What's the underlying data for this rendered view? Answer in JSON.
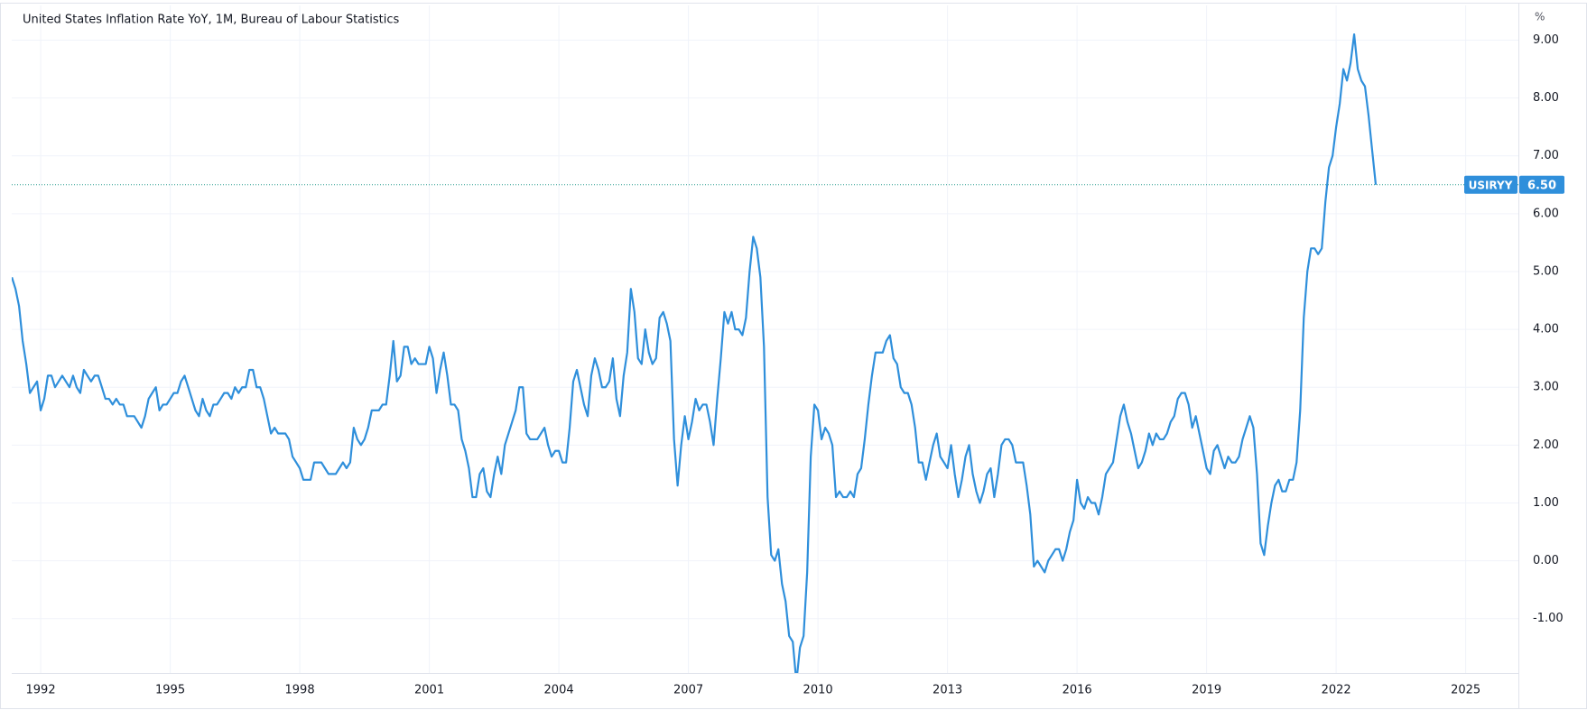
{
  "chart_data": {
    "type": "line",
    "title": "United States Inflation Rate YoY, 1M, Bureau of Labour Statistics",
    "y_unit": "%",
    "xlim": [
      1991.33,
      2026.22
    ],
    "xticks": [
      1992,
      1995,
      1998,
      2001,
      2004,
      2007,
      2010,
      2013,
      2016,
      2019,
      2022,
      2025
    ],
    "ylim": [
      -1.94,
      9.6
    ],
    "yticks": [
      {
        "value": -1,
        "label": "-1.00"
      },
      {
        "value": 0,
        "label": "0.00"
      },
      {
        "value": 1,
        "label": "1.00"
      },
      {
        "value": 2,
        "label": "2.00"
      },
      {
        "value": 3,
        "label": "3.00"
      },
      {
        "value": 4,
        "label": "4.00"
      },
      {
        "value": 5,
        "label": "5.00"
      },
      {
        "value": 6,
        "label": "6.00"
      },
      {
        "value": 7,
        "label": "7.00"
      },
      {
        "value": 8,
        "label": "8.00"
      },
      {
        "value": 9,
        "label": "9.00"
      }
    ],
    "grid": true,
    "price_line": {
      "value": 6.5,
      "label": "6.50"
    },
    "series": [
      {
        "name": "USIRYY",
        "color": "#2f8fdb",
        "x": [
          1991.333,
          1991.417,
          1991.5,
          1991.583,
          1991.667,
          1991.75,
          1991.833,
          1991.917,
          1992,
          1992.083,
          1992.167,
          1992.25,
          1992.333,
          1992.417,
          1992.5,
          1992.583,
          1992.667,
          1992.75,
          1992.833,
          1992.917,
          1993,
          1993.083,
          1993.167,
          1993.25,
          1993.333,
          1993.417,
          1993.5,
          1993.583,
          1993.667,
          1993.75,
          1993.833,
          1993.917,
          1994,
          1994.083,
          1994.167,
          1994.25,
          1994.333,
          1994.417,
          1994.5,
          1994.583,
          1994.667,
          1994.75,
          1994.833,
          1994.917,
          1995,
          1995.083,
          1995.167,
          1995.25,
          1995.333,
          1995.417,
          1995.5,
          1995.583,
          1995.667,
          1995.75,
          1995.833,
          1995.917,
          1996,
          1996.083,
          1996.167,
          1996.25,
          1996.333,
          1996.417,
          1996.5,
          1996.583,
          1996.667,
          1996.75,
          1996.833,
          1996.917,
          1997,
          1997.083,
          1997.167,
          1997.25,
          1997.333,
          1997.417,
          1997.5,
          1997.583,
          1997.667,
          1997.75,
          1997.833,
          1997.917,
          1998,
          1998.083,
          1998.167,
          1998.25,
          1998.333,
          1998.417,
          1998.5,
          1998.583,
          1998.667,
          1998.75,
          1998.833,
          1998.917,
          1999,
          1999.083,
          1999.167,
          1999.25,
          1999.333,
          1999.417,
          1999.5,
          1999.583,
          1999.667,
          1999.75,
          1999.833,
          1999.917,
          2000,
          2000.083,
          2000.167,
          2000.25,
          2000.333,
          2000.417,
          2000.5,
          2000.583,
          2000.667,
          2000.75,
          2000.833,
          2000.917,
          2001,
          2001.083,
          2001.167,
          2001.25,
          2001.333,
          2001.417,
          2001.5,
          2001.583,
          2001.667,
          2001.75,
          2001.833,
          2001.917,
          2002,
          2002.083,
          2002.167,
          2002.25,
          2002.333,
          2002.417,
          2002.5,
          2002.583,
          2002.667,
          2002.75,
          2002.833,
          2002.917,
          2003,
          2003.083,
          2003.167,
          2003.25,
          2003.333,
          2003.417,
          2003.5,
          2003.583,
          2003.667,
          2003.75,
          2003.833,
          2003.917,
          2004,
          2004.083,
          2004.167,
          2004.25,
          2004.333,
          2004.417,
          2004.5,
          2004.583,
          2004.667,
          2004.75,
          2004.833,
          2004.917,
          2005,
          2005.083,
          2005.167,
          2005.25,
          2005.333,
          2005.417,
          2005.5,
          2005.583,
          2005.667,
          2005.75,
          2005.833,
          2005.917,
          2006,
          2006.083,
          2006.167,
          2006.25,
          2006.333,
          2006.417,
          2006.5,
          2006.583,
          2006.667,
          2006.75,
          2006.833,
          2006.917,
          2007,
          2007.083,
          2007.167,
          2007.25,
          2007.333,
          2007.417,
          2007.5,
          2007.583,
          2007.667,
          2007.75,
          2007.833,
          2007.917,
          2008,
          2008.083,
          2008.167,
          2008.25,
          2008.333,
          2008.417,
          2008.5,
          2008.583,
          2008.667,
          2008.75,
          2008.833,
          2008.917,
          2009,
          2009.083,
          2009.167,
          2009.25,
          2009.333,
          2009.417,
          2009.5,
          2009.583,
          2009.667,
          2009.75,
          2009.833,
          2009.917,
          2010,
          2010.083,
          2010.167,
          2010.25,
          2010.333,
          2010.417,
          2010.5,
          2010.583,
          2010.667,
          2010.75,
          2010.833,
          2010.917,
          2011,
          2011.083,
          2011.167,
          2011.25,
          2011.333,
          2011.417,
          2011.5,
          2011.583,
          2011.667,
          2011.75,
          2011.833,
          2011.917,
          2012,
          2012.083,
          2012.167,
          2012.25,
          2012.333,
          2012.417,
          2012.5,
          2012.583,
          2012.667,
          2012.75,
          2012.833,
          2012.917,
          2013,
          2013.083,
          2013.167,
          2013.25,
          2013.333,
          2013.417,
          2013.5,
          2013.583,
          2013.667,
          2013.75,
          2013.833,
          2013.917,
          2014,
          2014.083,
          2014.167,
          2014.25,
          2014.333,
          2014.417,
          2014.5,
          2014.583,
          2014.667,
          2014.75,
          2014.833,
          2014.917,
          2015,
          2015.083,
          2015.167,
          2015.25,
          2015.333,
          2015.417,
          2015.5,
          2015.583,
          2015.667,
          2015.75,
          2015.833,
          2015.917,
          2016,
          2016.083,
          2016.167,
          2016.25,
          2016.333,
          2016.417,
          2016.5,
          2016.583,
          2016.667,
          2016.75,
          2016.833,
          2016.917,
          2017,
          2017.083,
          2017.167,
          2017.25,
          2017.333,
          2017.417,
          2017.5,
          2017.583,
          2017.667,
          2017.75,
          2017.833,
          2017.917,
          2018,
          2018.083,
          2018.167,
          2018.25,
          2018.333,
          2018.417,
          2018.5,
          2018.583,
          2018.667,
          2018.75,
          2018.833,
          2018.917,
          2019,
          2019.083,
          2019.167,
          2019.25,
          2019.333,
          2019.417,
          2019.5,
          2019.583,
          2019.667,
          2019.75,
          2019.833,
          2019.917,
          2020,
          2020.083,
          2020.167,
          2020.25,
          2020.333,
          2020.417,
          2020.5,
          2020.583,
          2020.667,
          2020.75,
          2020.833,
          2020.917,
          2021,
          2021.083,
          2021.167,
          2021.25,
          2021.333,
          2021.417,
          2021.5,
          2021.583,
          2021.667,
          2021.75,
          2021.833,
          2021.917,
          2022,
          2022.083,
          2022.167,
          2022.25,
          2022.333,
          2022.417,
          2022.5,
          2022.583,
          2022.667,
          2022.75,
          2022.833,
          2022.917
        ],
        "values": [
          4.9,
          4.7,
          4.4,
          3.8,
          3.4,
          2.9,
          3.0,
          3.1,
          2.6,
          2.8,
          3.2,
          3.2,
          3.0,
          3.1,
          3.2,
          3.1,
          3.0,
          3.2,
          3.0,
          2.9,
          3.3,
          3.2,
          3.1,
          3.2,
          3.2,
          3.0,
          2.8,
          2.8,
          2.7,
          2.8,
          2.7,
          2.7,
          2.5,
          2.5,
          2.5,
          2.4,
          2.3,
          2.5,
          2.8,
          2.9,
          3.0,
          2.6,
          2.7,
          2.7,
          2.8,
          2.9,
          2.9,
          3.1,
          3.2,
          3.0,
          2.8,
          2.6,
          2.5,
          2.8,
          2.6,
          2.5,
          2.7,
          2.7,
          2.8,
          2.9,
          2.9,
          2.8,
          3.0,
          2.9,
          3.0,
          3.0,
          3.3,
          3.3,
          3.0,
          3.0,
          2.8,
          2.5,
          2.2,
          2.3,
          2.2,
          2.2,
          2.2,
          2.1,
          1.8,
          1.7,
          1.6,
          1.4,
          1.4,
          1.4,
          1.7,
          1.7,
          1.7,
          1.6,
          1.5,
          1.5,
          1.5,
          1.6,
          1.7,
          1.6,
          1.7,
          2.3,
          2.1,
          2.0,
          2.1,
          2.3,
          2.6,
          2.6,
          2.6,
          2.7,
          2.7,
          3.2,
          3.8,
          3.1,
          3.2,
          3.7,
          3.7,
          3.4,
          3.5,
          3.4,
          3.4,
          3.4,
          3.7,
          3.5,
          2.9,
          3.3,
          3.6,
          3.2,
          2.7,
          2.7,
          2.6,
          2.1,
          1.9,
          1.6,
          1.1,
          1.1,
          1.5,
          1.6,
          1.2,
          1.1,
          1.5,
          1.8,
          1.5,
          2.0,
          2.2,
          2.4,
          2.6,
          3.0,
          3.0,
          2.2,
          2.1,
          2.1,
          2.1,
          2.2,
          2.3,
          2.0,
          1.8,
          1.9,
          1.9,
          1.7,
          1.7,
          2.3,
          3.1,
          3.3,
          3.0,
          2.7,
          2.5,
          3.2,
          3.5,
          3.3,
          3.0,
          3.0,
          3.1,
          3.5,
          2.8,
          2.5,
          3.2,
          3.6,
          4.7,
          4.3,
          3.5,
          3.4,
          4.0,
          3.6,
          3.4,
          3.5,
          4.2,
          4.3,
          4.1,
          3.8,
          2.1,
          1.3,
          2.0,
          2.5,
          2.1,
          2.4,
          2.8,
          2.6,
          2.7,
          2.7,
          2.4,
          2.0,
          2.8,
          3.5,
          4.3,
          4.1,
          4.3,
          4.0,
          4.0,
          3.9,
          4.2,
          5.0,
          5.6,
          5.4,
          4.9,
          3.7,
          1.1,
          0.1,
          0.0,
          0.2,
          -0.4,
          -0.7,
          -1.3,
          -1.4,
          -2.1,
          -1.5,
          -1.3,
          -0.2,
          1.8,
          2.7,
          2.6,
          2.1,
          2.3,
          2.2,
          2.0,
          1.1,
          1.2,
          1.1,
          1.1,
          1.2,
          1.1,
          1.5,
          1.6,
          2.1,
          2.7,
          3.2,
          3.6,
          3.6,
          3.6,
          3.8,
          3.9,
          3.5,
          3.4,
          3.0,
          2.9,
          2.9,
          2.7,
          2.3,
          1.7,
          1.7,
          1.4,
          1.7,
          2.0,
          2.2,
          1.8,
          1.7,
          1.6,
          2.0,
          1.5,
          1.1,
          1.4,
          1.8,
          2.0,
          1.5,
          1.2,
          1.0,
          1.2,
          1.5,
          1.6,
          1.1,
          1.5,
          2.0,
          2.1,
          2.1,
          2.0,
          1.7,
          1.7,
          1.7,
          1.3,
          0.8,
          -0.1,
          0.0,
          -0.1,
          -0.2,
          0.0,
          0.1,
          0.2,
          0.2,
          0.0,
          0.2,
          0.5,
          0.7,
          1.4,
          1.0,
          0.9,
          1.1,
          1.0,
          1.0,
          0.8,
          1.1,
          1.5,
          1.6,
          1.7,
          2.1,
          2.5,
          2.7,
          2.4,
          2.2,
          1.9,
          1.6,
          1.7,
          1.9,
          2.2,
          2.0,
          2.2,
          2.1,
          2.1,
          2.2,
          2.4,
          2.5,
          2.8,
          2.9,
          2.9,
          2.7,
          2.3,
          2.5,
          2.2,
          1.9,
          1.6,
          1.5,
          1.9,
          2.0,
          1.8,
          1.6,
          1.8,
          1.7,
          1.7,
          1.8,
          2.1,
          2.3,
          2.5,
          2.3,
          1.5,
          0.3,
          0.1,
          0.6,
          1.0,
          1.3,
          1.4,
          1.2,
          1.2,
          1.4,
          1.4,
          1.7,
          2.6,
          4.2,
          5.0,
          5.4,
          5.4,
          5.3,
          5.4,
          6.2,
          6.8,
          7.0,
          7.5,
          7.9,
          8.5,
          8.3,
          8.6,
          9.1,
          8.5,
          8.3,
          8.2,
          7.7,
          7.1,
          6.5
        ]
      }
    ]
  }
}
